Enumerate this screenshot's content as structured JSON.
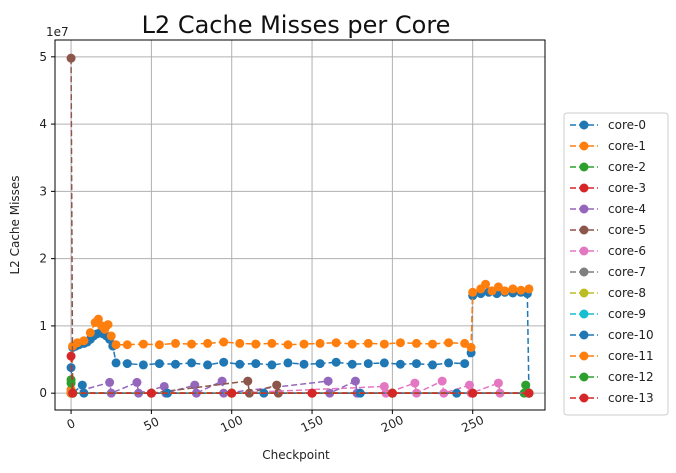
{
  "chart_data": {
    "type": "line",
    "title": "L2 Cache Misses per Core",
    "xlabel": "Checkpoint",
    "ylabel": "L2 Cache Misses",
    "y_offset_label": "1e7",
    "xlim": [
      -10,
      295
    ],
    "ylim": [
      -0.25,
      5.25
    ],
    "x_ticks": [
      0,
      50,
      100,
      150,
      200,
      250
    ],
    "y_ticks": [
      0,
      1,
      2,
      3,
      4,
      5
    ],
    "y_units": "1e7",
    "grid": true,
    "legend_placement": "right-outside",
    "series": [
      {
        "name": "core-0",
        "color": "#1f77b4",
        "points": [
          [
            0,
            0.05
          ],
          [
            1,
            0.68
          ],
          [
            3,
            0.7
          ],
          [
            5,
            0.72
          ],
          [
            8,
            0.74
          ],
          [
            10,
            0.76
          ],
          [
            12,
            0.8
          ],
          [
            14,
            0.85
          ],
          [
            16,
            0.88
          ],
          [
            18,
            0.9
          ],
          [
            20,
            0.88
          ],
          [
            22,
            0.85
          ],
          [
            24,
            0.8
          ],
          [
            26,
            0.7
          ],
          [
            28,
            0.45
          ],
          [
            35,
            0.44
          ],
          [
            45,
            0.42
          ],
          [
            55,
            0.44
          ],
          [
            65,
            0.43
          ],
          [
            75,
            0.45
          ],
          [
            85,
            0.42
          ],
          [
            95,
            0.46
          ],
          [
            105,
            0.43
          ],
          [
            115,
            0.44
          ],
          [
            125,
            0.42
          ],
          [
            135,
            0.45
          ],
          [
            145,
            0.43
          ],
          [
            155,
            0.44
          ],
          [
            165,
            0.46
          ],
          [
            175,
            0.43
          ],
          [
            185,
            0.44
          ],
          [
            195,
            0.45
          ],
          [
            205,
            0.43
          ],
          [
            215,
            0.44
          ],
          [
            225,
            0.42
          ],
          [
            235,
            0.45
          ],
          [
            245,
            0.44
          ],
          [
            249,
            0.6
          ],
          [
            250,
            1.45
          ],
          [
            255,
            1.48
          ],
          [
            260,
            1.5
          ],
          [
            265,
            1.48
          ],
          [
            270,
            1.5
          ],
          [
            275,
            1.49
          ],
          [
            280,
            1.5
          ],
          [
            284,
            1.48
          ],
          [
            285,
            0.0
          ]
        ]
      },
      {
        "name": "core-1",
        "color": "#ff7f0e",
        "points": [
          [
            0,
            0.05
          ],
          [
            1,
            0.7
          ],
          [
            4,
            0.75
          ],
          [
            8,
            0.78
          ],
          [
            12,
            0.9
          ],
          [
            15,
            1.05
          ],
          [
            17,
            1.1
          ],
          [
            19,
            1.0
          ],
          [
            21,
            0.95
          ],
          [
            23,
            1.02
          ],
          [
            25,
            0.85
          ],
          [
            28,
            0.72
          ],
          [
            35,
            0.72
          ],
          [
            45,
            0.73
          ],
          [
            55,
            0.72
          ],
          [
            65,
            0.74
          ],
          [
            75,
            0.73
          ],
          [
            85,
            0.74
          ],
          [
            95,
            0.76
          ],
          [
            105,
            0.74
          ],
          [
            115,
            0.73
          ],
          [
            125,
            0.74
          ],
          [
            135,
            0.72
          ],
          [
            145,
            0.73
          ],
          [
            155,
            0.74
          ],
          [
            165,
            0.75
          ],
          [
            175,
            0.73
          ],
          [
            185,
            0.74
          ],
          [
            195,
            0.73
          ],
          [
            205,
            0.75
          ],
          [
            215,
            0.74
          ],
          [
            225,
            0.73
          ],
          [
            235,
            0.75
          ],
          [
            245,
            0.74
          ],
          [
            249,
            0.68
          ],
          [
            250,
            1.5
          ],
          [
            255,
            1.55
          ],
          [
            258,
            1.62
          ],
          [
            262,
            1.52
          ],
          [
            266,
            1.58
          ],
          [
            270,
            1.52
          ],
          [
            275,
            1.55
          ],
          [
            280,
            1.53
          ],
          [
            285,
            1.55
          ]
        ]
      },
      {
        "name": "core-2",
        "color": "#2ca02c",
        "points": [
          [
            0,
            0.2
          ],
          [
            1,
            0.0
          ],
          [
            50,
            0.0
          ],
          [
            100,
            0.0
          ],
          [
            150,
            0.0
          ],
          [
            200,
            0.0
          ],
          [
            250,
            0.0
          ],
          [
            282,
            0.0
          ],
          [
            283,
            0.12
          ],
          [
            285,
            0.0
          ]
        ]
      },
      {
        "name": "core-3",
        "color": "#d62728",
        "points": [
          [
            0,
            0.0
          ],
          [
            50,
            0.0
          ],
          [
            100,
            0.0
          ],
          [
            150,
            0.0
          ],
          [
            200,
            0.0
          ],
          [
            250,
            0.0
          ],
          [
            285,
            0.0
          ]
        ]
      },
      {
        "name": "core-4",
        "color": "#9467bd",
        "points": [
          [
            0,
            0.0
          ],
          [
            24,
            0.16
          ],
          [
            25,
            0.0
          ],
          [
            41,
            0.16
          ],
          [
            42,
            0.0
          ],
          [
            58,
            0.1
          ],
          [
            59,
            0.0
          ],
          [
            77,
            0.12
          ],
          [
            78,
            0.0
          ],
          [
            94,
            0.18
          ],
          [
            95,
            0.0
          ],
          [
            160,
            0.18
          ],
          [
            161,
            0.0
          ],
          [
            177,
            0.18
          ],
          [
            178,
            0.0
          ],
          [
            285,
            0.0
          ]
        ]
      },
      {
        "name": "core-5",
        "color": "#8c564b",
        "points": [
          [
            0,
            4.98
          ],
          [
            1,
            0.0
          ],
          [
            50,
            0.0
          ],
          [
            110,
            0.18
          ],
          [
            111,
            0.0
          ],
          [
            128,
            0.12
          ],
          [
            129,
            0.0
          ],
          [
            200,
            0.0
          ],
          [
            285,
            0.0
          ]
        ]
      },
      {
        "name": "core-6",
        "color": "#e377c2",
        "points": [
          [
            0,
            0.0
          ],
          [
            100,
            0.0
          ],
          [
            195,
            0.1
          ],
          [
            196,
            0.0
          ],
          [
            214,
            0.15
          ],
          [
            215,
            0.0
          ],
          [
            231,
            0.18
          ],
          [
            232,
            0.0
          ],
          [
            248,
            0.12
          ],
          [
            249,
            0.0
          ],
          [
            266,
            0.15
          ],
          [
            267,
            0.0
          ],
          [
            285,
            0.0
          ]
        ]
      },
      {
        "name": "core-7",
        "color": "#7f7f7f",
        "points": [
          [
            0,
            0.0
          ],
          [
            100,
            0.0
          ],
          [
            200,
            0.0
          ],
          [
            285,
            0.0
          ]
        ]
      },
      {
        "name": "core-8",
        "color": "#bcbd22",
        "points": [
          [
            0,
            0.0
          ],
          [
            100,
            0.0
          ],
          [
            200,
            0.0
          ],
          [
            285,
            0.0
          ]
        ]
      },
      {
        "name": "core-9",
        "color": "#17becf",
        "points": [
          [
            0,
            0.0
          ],
          [
            100,
            0.0
          ],
          [
            200,
            0.0
          ],
          [
            285,
            0.0
          ]
        ]
      },
      {
        "name": "core-10",
        "color": "#1f77b4",
        "points": [
          [
            0,
            0.38
          ],
          [
            1,
            0.0
          ],
          [
            7,
            0.12
          ],
          [
            8,
            0.0
          ],
          [
            60,
            0.0
          ],
          [
            120,
            0.0
          ],
          [
            180,
            0.0
          ],
          [
            240,
            0.0
          ],
          [
            285,
            0.0
          ]
        ]
      },
      {
        "name": "core-11",
        "color": "#ff7f0e",
        "points": [
          [
            0,
            0.0
          ],
          [
            100,
            0.0
          ],
          [
            200,
            0.0
          ],
          [
            285,
            0.0
          ]
        ]
      },
      {
        "name": "core-12",
        "color": "#2ca02c",
        "points": [
          [
            0,
            0.15
          ],
          [
            1,
            0.0
          ],
          [
            100,
            0.0
          ],
          [
            200,
            0.0
          ],
          [
            285,
            0.0
          ]
        ]
      },
      {
        "name": "core-13",
        "color": "#d62728",
        "points": [
          [
            0,
            0.55
          ],
          [
            1,
            0.0
          ],
          [
            50,
            0.0
          ],
          [
            100,
            0.0
          ],
          [
            150,
            0.0
          ],
          [
            200,
            0.0
          ],
          [
            250,
            0.0
          ],
          [
            285,
            0.0
          ]
        ]
      }
    ]
  }
}
